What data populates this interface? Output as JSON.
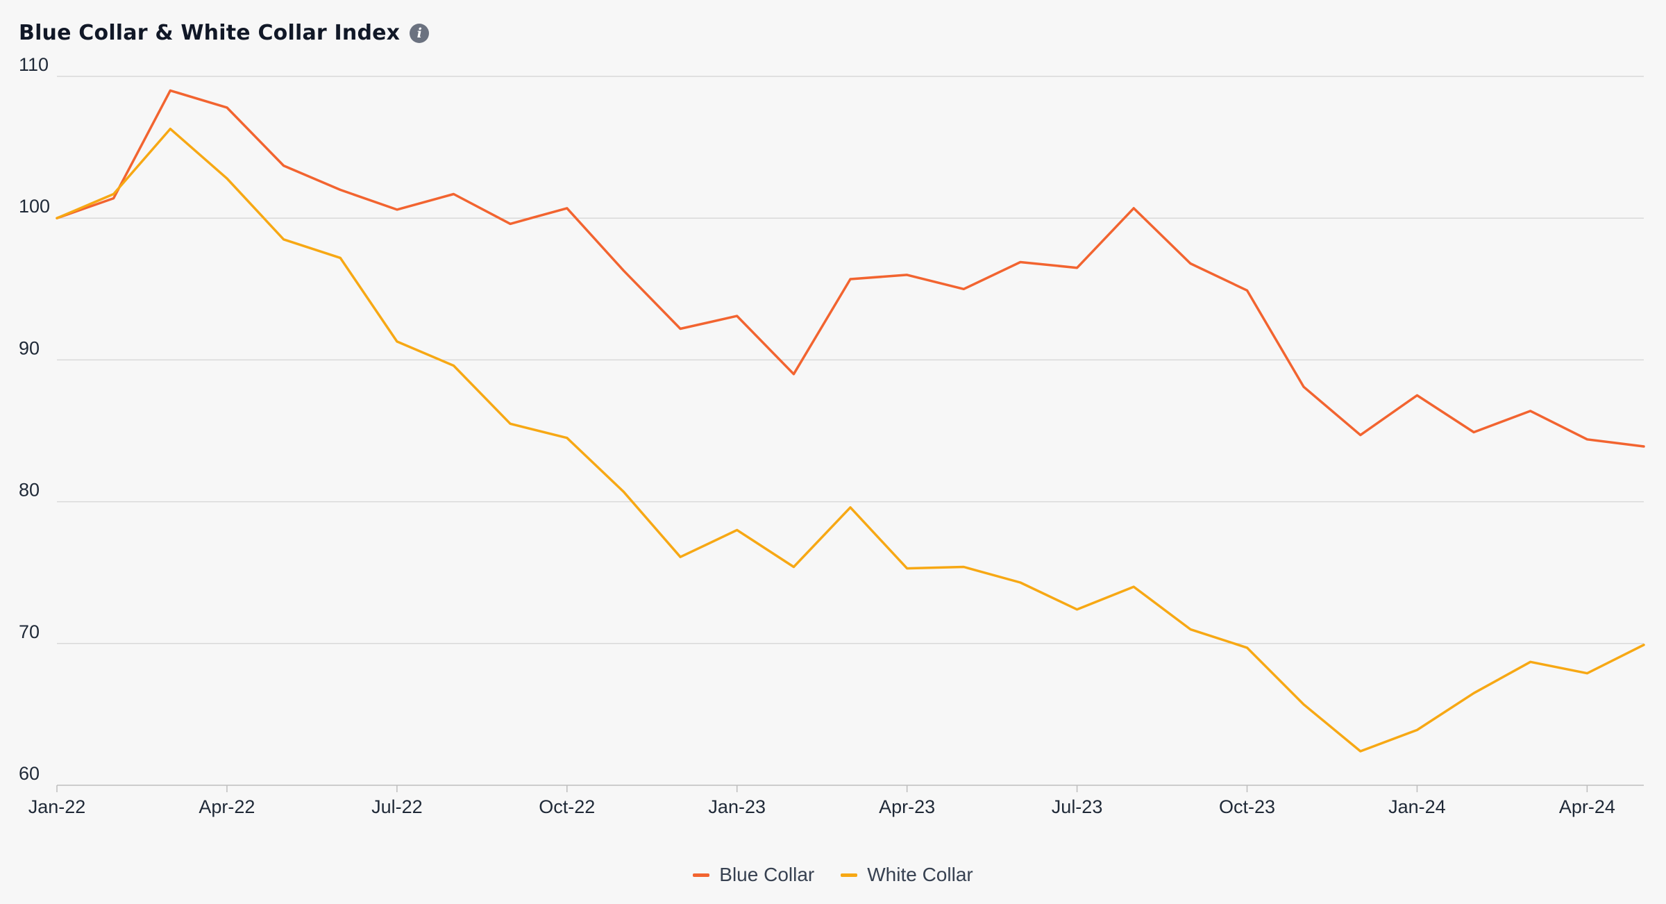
{
  "header": {
    "title": "Blue Collar & White Collar Index",
    "info_icon": "info-icon"
  },
  "chart_data": {
    "type": "line",
    "title": "Blue Collar & White Collar Index",
    "xlabel": "",
    "ylabel": "",
    "ylim": [
      60,
      110
    ],
    "yticks": [
      110,
      100,
      90,
      80,
      70,
      60
    ],
    "x": [
      "Jan-22",
      "Feb-22",
      "Mar-22",
      "Apr-22",
      "May-22",
      "Jun-22",
      "Jul-22",
      "Aug-22",
      "Sep-22",
      "Oct-22",
      "Nov-22",
      "Dec-22",
      "Jan-23",
      "Feb-23",
      "Mar-23",
      "Apr-23",
      "May-23",
      "Jun-23",
      "Jul-23",
      "Aug-23",
      "Sep-23",
      "Oct-23",
      "Nov-23",
      "Dec-23",
      "Jan-24",
      "Feb-24",
      "Mar-24",
      "Apr-24",
      "May-24"
    ],
    "xtick_labels": [
      "Jan-22",
      "Apr-22",
      "Jul-22",
      "Oct-22",
      "Jan-23",
      "Apr-23",
      "Jul-23",
      "Oct-23",
      "Jan-24",
      "Apr-24"
    ],
    "grid": true,
    "legend_position": "bottom-center",
    "series": [
      {
        "name": "Blue Collar",
        "color": "#f26430",
        "values": [
          100.0,
          101.4,
          109.0,
          107.8,
          103.7,
          102.0,
          100.6,
          101.7,
          99.6,
          100.7,
          96.3,
          92.2,
          93.1,
          89.0,
          95.7,
          96.0,
          95.0,
          96.9,
          96.5,
          100.7,
          96.8,
          94.9,
          88.1,
          84.7,
          87.5,
          84.9,
          86.4,
          84.4,
          83.9
        ]
      },
      {
        "name": "White Collar",
        "color": "#f7a814",
        "values": [
          100.0,
          101.7,
          106.3,
          102.8,
          98.5,
          97.2,
          91.3,
          89.6,
          85.5,
          84.5,
          80.7,
          76.1,
          78.0,
          75.4,
          79.6,
          75.3,
          75.4,
          74.3,
          72.4,
          74.0,
          71.0,
          69.7,
          65.7,
          62.4,
          63.9,
          66.5,
          68.7,
          67.9,
          69.9
        ]
      }
    ]
  },
  "colors": {
    "background": "#f7f7f7",
    "grid": "#d9d9d9",
    "axis": "#bdbdbd",
    "text": "#1f2937"
  }
}
